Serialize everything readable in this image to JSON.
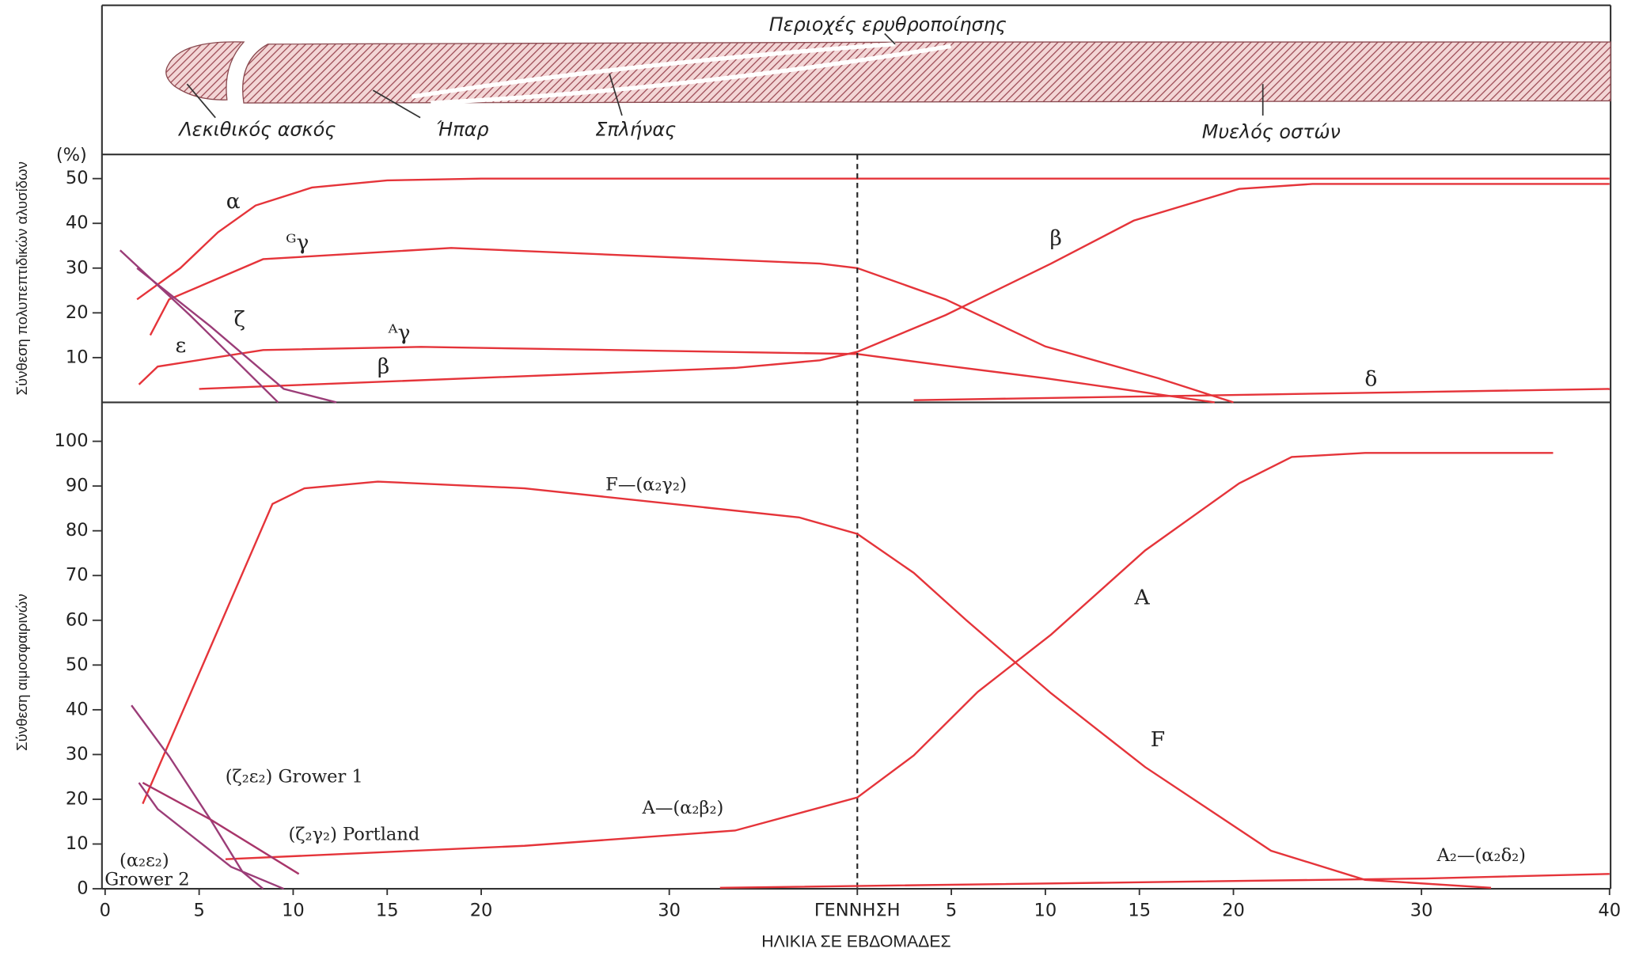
{
  "diagram": {
    "title": "Περιοχές ερυθροποίησης",
    "labels": [
      "Λεκιθικός ασκός",
      "Ήπαρ",
      "Σπλήνας",
      "Μυελός οστών"
    ]
  },
  "chart_data": [
    {
      "type": "line",
      "ylabel": "Σύνθεση πολυπεπτιδικών αλυσίδων",
      "y_unit": "(%)",
      "xlim": [
        0,
        80
      ],
      "ylim": [
        0,
        55.4
      ],
      "yticks": [
        10,
        20,
        30,
        40,
        50
      ],
      "series": [
        {
          "name": "α",
          "color": "#e5343a",
          "x": [
            1.7,
            4,
            6,
            8,
            11,
            15,
            20,
            40,
            80
          ],
          "values": [
            23,
            30,
            38,
            44,
            48,
            49.6,
            50,
            50,
            50
          ]
        },
        {
          "name": "ᴳγ",
          "color": "#e5343a",
          "x": [
            2.4,
            3.4,
            8.4,
            18.4,
            38,
            40,
            44.7,
            50,
            56,
            60
          ],
          "values": [
            15,
            23,
            32,
            34.5,
            31,
            30,
            23,
            12.5,
            5.4,
            0
          ]
        },
        {
          "name": "ᴬγ",
          "color": "#e5343a",
          "x": [
            1.8,
            2.8,
            8.4,
            16.8,
            40,
            44.7,
            50,
            57,
            59
          ],
          "values": [
            4,
            8,
            11.7,
            12.4,
            10.8,
            8.2,
            5.4,
            1.2,
            0
          ]
        },
        {
          "name": "β",
          "color": "#e5343a",
          "x": [
            5,
            33.5,
            38,
            40,
            44.7,
            50.3,
            54.7,
            60.3,
            64.2,
            80
          ],
          "values": [
            3,
            7.7,
            9.4,
            11.3,
            19.5,
            31,
            40.6,
            47.7,
            48.8,
            48.8
          ]
        },
        {
          "name": "δ",
          "color": "#e5343a",
          "x": [
            43,
            80
          ],
          "values": [
            0.5,
            3
          ]
        },
        {
          "name": "ζ",
          "color": "#9b3d78",
          "x": [
            1.7,
            5.6,
            9.5,
            12.3
          ],
          "values": [
            30,
            17,
            3,
            0
          ]
        },
        {
          "name": "ε",
          "color": "#9b3d78",
          "x": [
            0.8,
            4.5,
            9.2
          ],
          "values": [
            34,
            19.5,
            0
          ]
        }
      ]
    },
    {
      "type": "line",
      "ylabel": "Σύνθεση αιμοσφαιρινών",
      "xlabel": "ΗΛΙΚΙΑ ΣΕ ΕΒΔΟΜΑΔΕΣ",
      "xlim": [
        0,
        80
      ],
      "ylim": [
        0,
        108.7
      ],
      "yticks": [
        0,
        10,
        20,
        30,
        40,
        50,
        60,
        70,
        80,
        90,
        100
      ],
      "xticks": [
        0,
        5,
        10,
        15,
        20,
        30,
        {
          "value": 40,
          "label": "ΓΕΝΝΗΣΗ"
        },
        {
          "value": 45,
          "label": "5"
        },
        {
          "value": 50,
          "label": "10"
        },
        {
          "value": 55,
          "label": "15"
        },
        {
          "value": 60,
          "label": "20"
        },
        {
          "value": 70,
          "label": "30"
        },
        {
          "value": 80,
          "label": "40"
        }
      ],
      "series": [
        {
          "name": "F—(α₂γ₂)",
          "color": "#e5343a",
          "x": [
            2,
            8.9,
            10.6,
            14.5,
            22.3,
            36.9,
            40,
            43,
            45.8,
            50.3,
            55.3,
            62,
            67,
            73.7
          ],
          "values": [
            19,
            86,
            89.5,
            91,
            89.5,
            83,
            79.3,
            70.6,
            60,
            43.7,
            27.2,
            8.5,
            2,
            0.2
          ]
        },
        {
          "name": "A—(α₂β₂)",
          "color": "#e5343a",
          "x": [
            6.4,
            22.3,
            33.5,
            40,
            43,
            46.4,
            50.3,
            55.3,
            60.3,
            63.1,
            67,
            77
          ],
          "values": [
            6.6,
            9.6,
            13,
            20.4,
            29.8,
            44,
            56.8,
            75.6,
            90.6,
            96.5,
            97.4,
            97.4
          ]
        },
        {
          "name": "A₂—(α₂δ₂)",
          "color": "#e5343a",
          "x": [
            32.7,
            70.2,
            80
          ],
          "values": [
            0.2,
            2.3,
            3.3
          ]
        },
        {
          "name": "(ζ₂ε₂) Grower 1",
          "color": "#9b3d78",
          "x": [
            1.4,
            3.4,
            5.6,
            7.3,
            8.4
          ],
          "values": [
            41,
            29.6,
            15.5,
            3.8,
            0
          ]
        },
        {
          "name": "(ζ₂γ₂) Portland",
          "color": "#a8356a",
          "x": [
            2,
            5.6,
            10.3
          ],
          "values": [
            23.7,
            15.5,
            3.3
          ]
        },
        {
          "name": "(α₂ε₂) Grower 2",
          "color": "#9b3d78",
          "x": [
            1.8,
            2.8,
            6.7,
            9.5
          ],
          "values": [
            23.7,
            17.8,
            4.9,
            0
          ]
        }
      ],
      "annotations": [
        "A",
        "F"
      ]
    }
  ]
}
